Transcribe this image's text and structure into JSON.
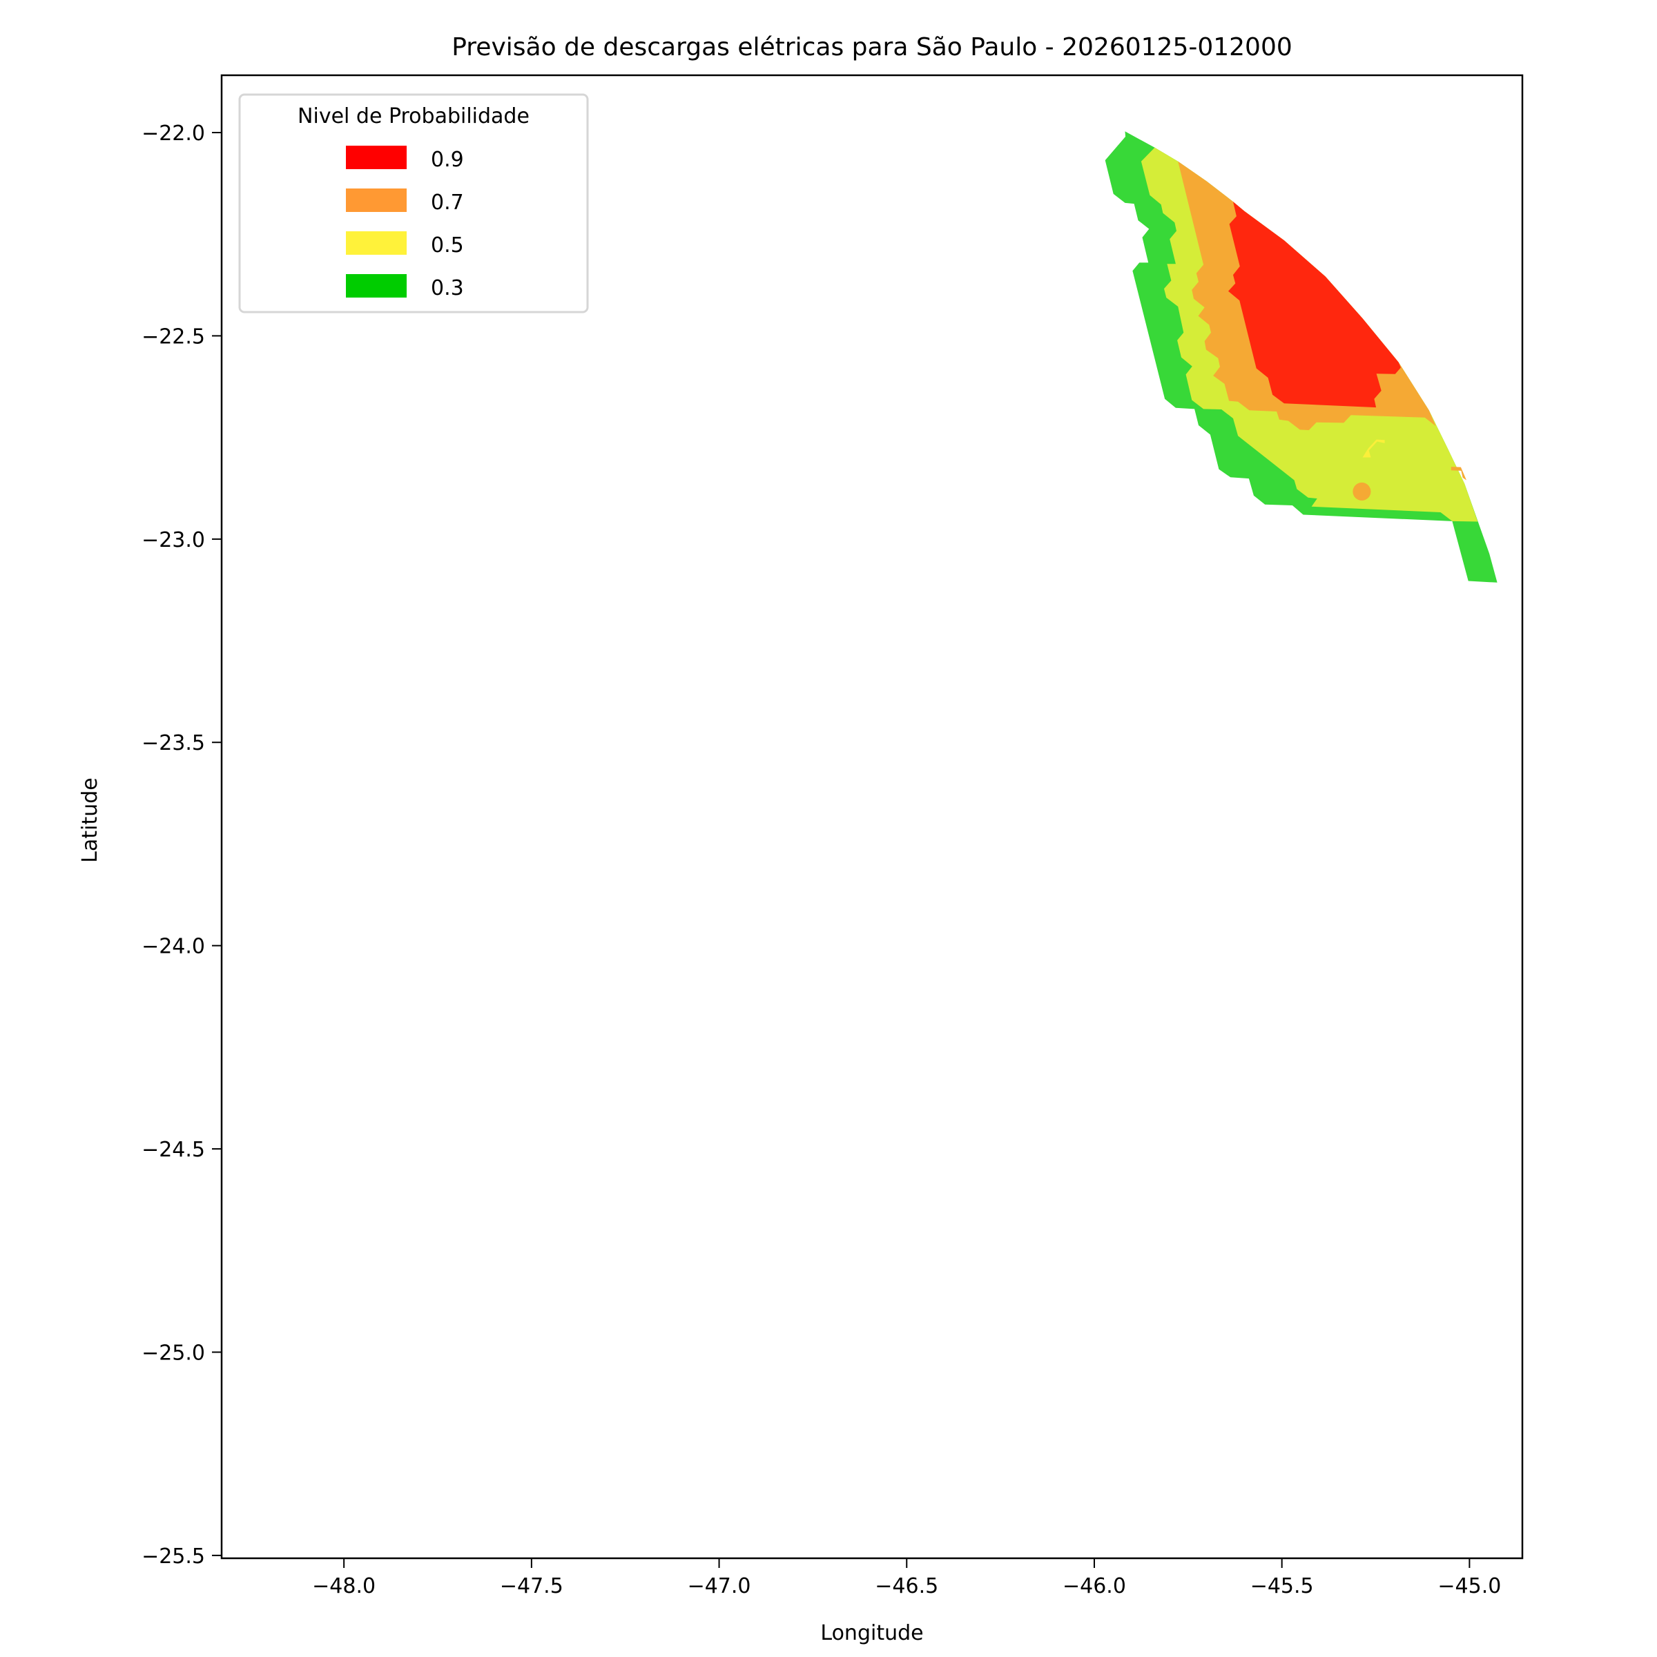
{
  "chart_data": {
    "type": "filled-contour",
    "title": "Previsão de descargas elétricas para São Paulo - 20260125-012000",
    "xlabel": "Longitude",
    "ylabel": "Latitude",
    "xlim": [
      -48.326,
      -44.859
    ],
    "ylim": [
      -25.507,
      -21.859
    ],
    "grid": false,
    "x_ticks": [
      -48.0,
      -47.5,
      -47.0,
      -46.5,
      -46.0,
      -45.5,
      -45.0
    ],
    "x_tick_labels": [
      "−48.0",
      "−47.5",
      "−47.0",
      "−46.5",
      "−46.0",
      "−45.5",
      "−45.0"
    ],
    "y_ticks": [
      -22.0,
      -22.5,
      -23.0,
      -23.5,
      -24.0,
      -24.5,
      -25.0,
      -25.5
    ],
    "y_tick_labels": [
      "−22.0",
      "−22.5",
      "−23.0",
      "−23.5",
      "−24.0",
      "−24.5",
      "−25.0",
      "−25.5"
    ],
    "legend": {
      "title": "Nivel de Probabilidade",
      "placement": "upper-left",
      "entries": [
        {
          "label": "0.9",
          "color": "#ff0000"
        },
        {
          "label": "0.7",
          "color": "#ff9933"
        },
        {
          "label": "0.5",
          "color": "#fff23a"
        },
        {
          "label": "0.3",
          "color": "#00cc00"
        }
      ]
    },
    "regions": [
      {
        "level": 0.3,
        "color": "#38d838",
        "polygon": [
          [
            -45.918,
            -21.997
          ],
          [
            -45.839,
            -22.037
          ],
          [
            -45.777,
            -22.071
          ],
          [
            -45.7,
            -22.12
          ],
          [
            -45.63,
            -22.17
          ],
          [
            -45.6,
            -22.193
          ],
          [
            -45.494,
            -22.265
          ],
          [
            -45.384,
            -22.354
          ],
          [
            -45.285,
            -22.457
          ],
          [
            -45.189,
            -22.565
          ],
          [
            -45.108,
            -22.683
          ],
          [
            -45.057,
            -22.779
          ],
          [
            -45.013,
            -22.864
          ],
          [
            -44.947,
            -23.036
          ],
          [
            -44.926,
            -23.107
          ],
          [
            -45.003,
            -23.103
          ],
          [
            -45.046,
            -22.956
          ],
          [
            -45.443,
            -22.94
          ],
          [
            -45.472,
            -22.917
          ],
          [
            -45.545,
            -22.915
          ],
          [
            -45.575,
            -22.893
          ],
          [
            -45.588,
            -22.851
          ],
          [
            -45.637,
            -22.848
          ],
          [
            -45.668,
            -22.828
          ],
          [
            -45.691,
            -22.743
          ],
          [
            -45.722,
            -22.72
          ],
          [
            -45.733,
            -22.68
          ],
          [
            -45.783,
            -22.677
          ],
          [
            -45.812,
            -22.655
          ],
          [
            -45.898,
            -22.34
          ],
          [
            -45.88,
            -22.32
          ],
          [
            -45.856,
            -22.32
          ],
          [
            -45.872,
            -22.258
          ],
          [
            -45.854,
            -22.237
          ],
          [
            -45.883,
            -22.216
          ],
          [
            -45.894,
            -22.175
          ],
          [
            -45.918,
            -22.173
          ],
          [
            -45.949,
            -22.151
          ],
          [
            -45.971,
            -22.068
          ],
          [
            -45.917,
            -22.01
          ]
        ]
      },
      {
        "level": 0.5,
        "color": "#d5ed38",
        "polygon": [
          [
            -45.839,
            -22.037
          ],
          [
            -45.777,
            -22.071
          ],
          [
            -45.7,
            -22.12
          ],
          [
            -45.63,
            -22.17
          ],
          [
            -45.6,
            -22.193
          ],
          [
            -45.494,
            -22.265
          ],
          [
            -45.384,
            -22.354
          ],
          [
            -45.285,
            -22.457
          ],
          [
            -45.189,
            -22.565
          ],
          [
            -45.108,
            -22.683
          ],
          [
            -45.057,
            -22.779
          ],
          [
            -45.013,
            -22.864
          ],
          [
            -44.978,
            -22.957
          ],
          [
            -45.046,
            -22.956
          ],
          [
            -45.077,
            -22.934
          ],
          [
            -45.421,
            -22.92
          ],
          [
            -45.406,
            -22.9
          ],
          [
            -45.43,
            -22.898
          ],
          [
            -45.46,
            -22.877
          ],
          [
            -45.467,
            -22.855
          ],
          [
            -45.617,
            -22.746
          ],
          [
            -45.63,
            -22.703
          ],
          [
            -45.661,
            -22.681
          ],
          [
            -45.709,
            -22.68
          ],
          [
            -45.74,
            -22.658
          ],
          [
            -45.756,
            -22.595
          ],
          [
            -45.739,
            -22.575
          ],
          [
            -45.768,
            -22.553
          ],
          [
            -45.779,
            -22.511
          ],
          [
            -45.762,
            -22.492
          ],
          [
            -45.777,
            -22.428
          ],
          [
            -45.808,
            -22.406
          ],
          [
            -45.814,
            -22.384
          ],
          [
            -45.795,
            -22.364
          ],
          [
            -45.806,
            -22.323
          ],
          [
            -45.783,
            -22.323
          ],
          [
            -45.799,
            -22.262
          ],
          [
            -45.781,
            -22.242
          ],
          [
            -45.786,
            -22.221
          ],
          [
            -45.817,
            -22.198
          ],
          [
            -45.822,
            -22.177
          ],
          [
            -45.852,
            -22.154
          ],
          [
            -45.875,
            -22.071
          ]
        ]
      },
      {
        "level": 0.7,
        "color": "#f5a934",
        "polygon": [
          [
            -45.777,
            -22.071
          ],
          [
            -45.7,
            -22.12
          ],
          [
            -45.63,
            -22.17
          ],
          [
            -45.6,
            -22.193
          ],
          [
            -45.494,
            -22.265
          ],
          [
            -45.384,
            -22.354
          ],
          [
            -45.285,
            -22.457
          ],
          [
            -45.189,
            -22.565
          ],
          [
            -45.108,
            -22.683
          ],
          [
            -45.09,
            -22.722
          ],
          [
            -45.119,
            -22.701
          ],
          [
            -45.316,
            -22.695
          ],
          [
            -45.335,
            -22.714
          ],
          [
            -45.408,
            -22.713
          ],
          [
            -45.428,
            -22.732
          ],
          [
            -45.452,
            -22.731
          ],
          [
            -45.483,
            -22.709
          ],
          [
            -45.507,
            -22.706
          ],
          [
            -45.514,
            -22.686
          ],
          [
            -45.587,
            -22.683
          ],
          [
            -45.617,
            -22.662
          ],
          [
            -45.641,
            -22.66
          ],
          [
            -45.653,
            -22.618
          ],
          [
            -45.683,
            -22.598
          ],
          [
            -45.665,
            -22.576
          ],
          [
            -45.67,
            -22.555
          ],
          [
            -45.702,
            -22.534
          ],
          [
            -45.706,
            -22.513
          ],
          [
            -45.689,
            -22.492
          ],
          [
            -45.694,
            -22.473
          ],
          [
            -45.723,
            -22.451
          ],
          [
            -45.706,
            -22.43
          ],
          [
            -45.735,
            -22.409
          ],
          [
            -45.74,
            -22.387
          ],
          [
            -45.722,
            -22.367
          ],
          [
            -45.728,
            -22.346
          ],
          [
            -45.709,
            -22.325
          ]
        ]
      },
      {
        "level": 0.9,
        "color": "#ff270e",
        "polygon": [
          [
            -45.63,
            -22.17
          ],
          [
            -45.6,
            -22.193
          ],
          [
            -45.494,
            -22.265
          ],
          [
            -45.384,
            -22.354
          ],
          [
            -45.285,
            -22.457
          ],
          [
            -45.189,
            -22.565
          ],
          [
            -45.183,
            -22.578
          ],
          [
            -45.198,
            -22.594
          ],
          [
            -45.248,
            -22.593
          ],
          [
            -45.235,
            -22.635
          ],
          [
            -45.254,
            -22.655
          ],
          [
            -45.249,
            -22.676
          ],
          [
            -45.494,
            -22.666
          ],
          [
            -45.525,
            -22.645
          ],
          [
            -45.537,
            -22.603
          ],
          [
            -45.568,
            -22.58
          ],
          [
            -45.613,
            -22.413
          ],
          [
            -45.643,
            -22.39
          ],
          [
            -45.624,
            -22.371
          ],
          [
            -45.63,
            -22.35
          ],
          [
            -45.612,
            -22.329
          ],
          [
            -45.64,
            -22.225
          ],
          [
            -45.621,
            -22.206
          ]
        ]
      },
      {
        "level": 0.5,
        "color": "#fbef3a",
        "polygon": [
          [
            -45.285,
            -22.799
          ],
          [
            -45.263,
            -22.799
          ],
          [
            -45.268,
            -22.782
          ],
          [
            -45.246,
            -22.76
          ],
          [
            -45.226,
            -22.764
          ],
          [
            -45.226,
            -22.756
          ],
          [
            -45.248,
            -22.755
          ],
          [
            -45.27,
            -22.777
          ]
        ]
      },
      {
        "level": 0.7,
        "color": "#f5a934",
        "polygon": [
          [
            -45.049,
            -22.822
          ],
          [
            -45.023,
            -22.823
          ],
          [
            -45.008,
            -22.855
          ],
          [
            -45.018,
            -22.849
          ],
          [
            -45.022,
            -22.832
          ],
          [
            -45.049,
            -22.831
          ]
        ]
      }
    ],
    "spots": [
      {
        "level": 0.7,
        "color": "#f5a934",
        "lon": -45.287,
        "lat": -22.883,
        "radius_deg": 0.024
      }
    ]
  }
}
